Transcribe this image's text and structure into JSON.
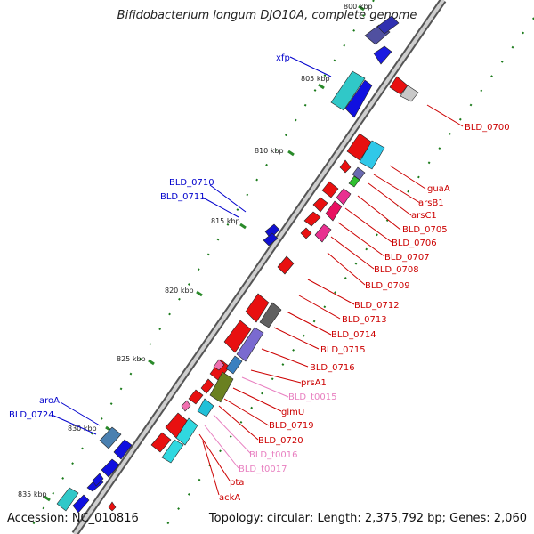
{
  "title": "Bifidobacterium longum DJO10A, complete genome",
  "footer": {
    "accession": "Accession: NC_010816",
    "summary": "Topology: circular; Length: 2,375,792 bp; Genes: 2,060"
  },
  "ticks": [
    "800 kbp",
    "805 kbp",
    "810 kbp",
    "815 kbp",
    "820 kbp",
    "825 kbp",
    "830 kbp",
    "835 kbp"
  ],
  "left_labels": [
    "xfp",
    "BLD_0710",
    "BLD_0711",
    "aroA",
    "BLD_0724"
  ],
  "right_labels": [
    "BLD_0700",
    "guaA",
    "arsB1",
    "arsC1",
    "BLD_0705",
    "BLD_0706",
    "BLD_0707",
    "BLD_0708",
    "BLD_0709",
    "BLD_0712",
    "BLD_0713",
    "BLD_0714",
    "BLD_0715",
    "BLD_0716",
    "prsA1",
    "BLD_t0015",
    "glmU",
    "BLD_0719",
    "BLD_0720",
    "BLD_t0016",
    "BLD_t0017",
    "pta",
    "ackA"
  ],
  "colors": {
    "forward_label": "#0000cc",
    "reverse_label": "#cc0000",
    "trna_label": "#e87fc0",
    "backbone": "#9a9a9a",
    "tick": "#2a8a2a"
  }
}
